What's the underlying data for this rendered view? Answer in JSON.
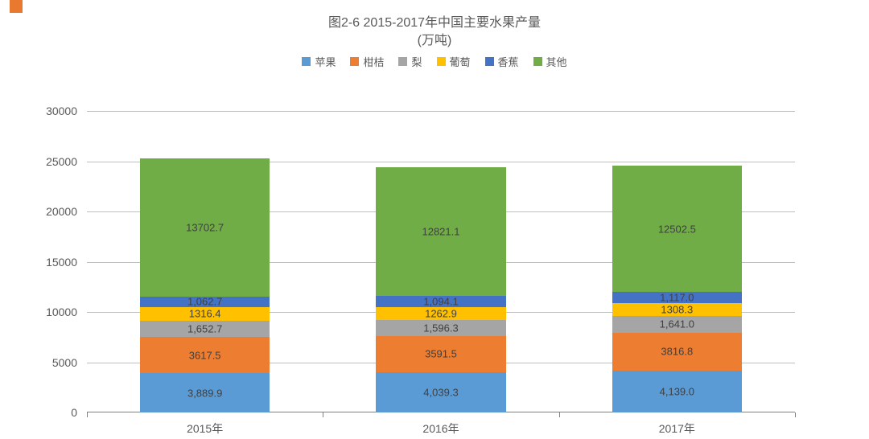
{
  "corner_color": "#e8792f",
  "title_line1": "图2-6 2015-2017年中国主要水果产量",
  "title_line2": "(万吨)",
  "legend": [
    {
      "label": "苹果",
      "color": "#5b9bd5"
    },
    {
      "label": "柑桔",
      "color": "#ed7d31"
    },
    {
      "label": "梨",
      "color": "#a5a5a5"
    },
    {
      "label": "葡萄",
      "color": "#ffc000"
    },
    {
      "label": "香蕉",
      "color": "#4472c4"
    },
    {
      "label": "其他",
      "color": "#70ad47"
    }
  ],
  "chart": {
    "type": "stacked-bar",
    "ylim": [
      0,
      30000
    ],
    "ytick_step": 5000,
    "yticks": [
      0,
      5000,
      10000,
      15000,
      20000,
      25000,
      30000
    ],
    "grid_color": "#bfbfbf",
    "axis_color": "#808080",
    "background_color": "#ffffff",
    "bar_width_ratio": 0.55,
    "categories": [
      "2015年",
      "2016年",
      "2017年"
    ],
    "series_order": [
      "苹果",
      "柑桔",
      "梨",
      "葡萄",
      "香蕉",
      "其他"
    ],
    "colors": {
      "苹果": "#5b9bd5",
      "柑桔": "#ed7d31",
      "梨": "#a5a5a5",
      "葡萄": "#ffc000",
      "香蕉": "#4472c4",
      "其他": "#70ad47"
    },
    "data": {
      "2015年": {
        "苹果": 3889.9,
        "柑桔": 3617.5,
        "梨": 1652.7,
        "葡萄": 1316.4,
        "香蕉": 1062.7,
        "其他": 13702.7
      },
      "2016年": {
        "苹果": 4039.3,
        "柑桔": 3591.5,
        "梨": 1596.3,
        "葡萄": 1262.9,
        "香蕉": 1094.1,
        "其他": 12821.1
      },
      "2017年": {
        "苹果": 4139.0,
        "柑桔": 3816.8,
        "梨": 1641.0,
        "葡萄": 1308.3,
        "香蕉": 1117.0,
        "其他": 12502.5
      }
    },
    "labels": {
      "2015年": {
        "苹果": "3,889.9",
        "柑桔": "3617.5",
        "梨": "1,652.7",
        "葡萄": "1316.4",
        "香蕉": "1,062.7",
        "其他": "13702.7"
      },
      "2016年": {
        "苹果": "4,039.3",
        "柑桔": "3591.5",
        "梨": "1,596.3",
        "葡萄": "1262.9",
        "香蕉": "1,094.1",
        "其他": "12821.1"
      },
      "2017年": {
        "苹果": "4,139.0",
        "柑桔": "3816.8",
        "梨": "1,641.0",
        "葡萄": "1308.3",
        "香蕉": "1,117.0",
        "其他": "12502.5"
      }
    },
    "title_fontsize": 16,
    "label_fontsize": 13,
    "tick_fontsize": 14
  }
}
